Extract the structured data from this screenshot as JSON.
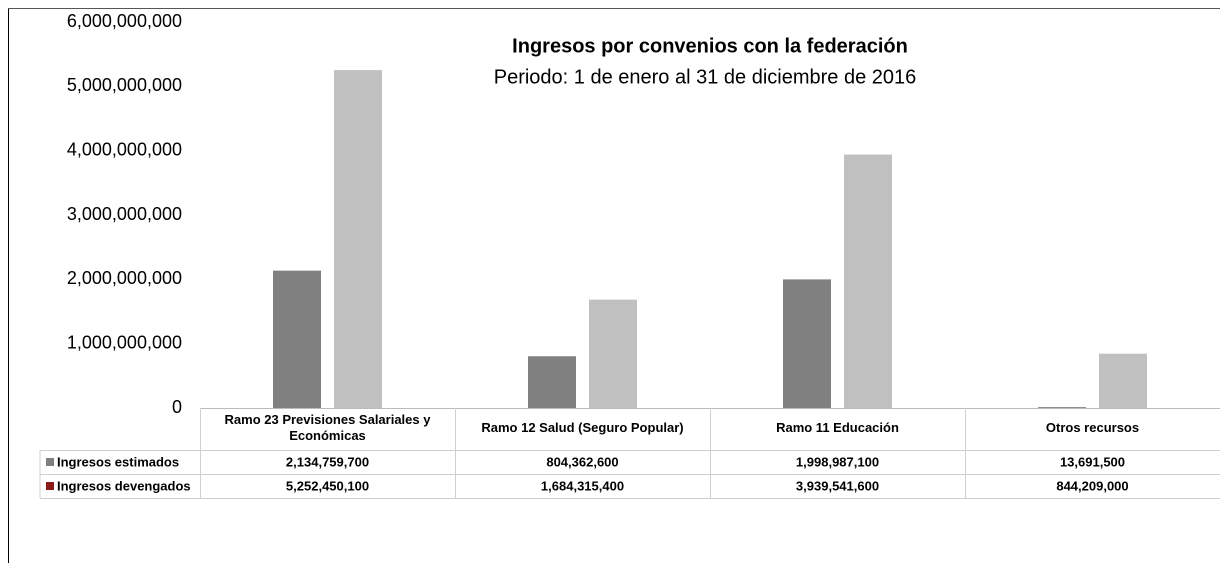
{
  "chart_data": {
    "type": "bar",
    "title": "Ingresos por convenios con la federación",
    "subtitle": "Periodo: 1 de enero al 31 de diciembre de 2016",
    "categories": [
      "Ramo 23 Previsiones Salariales y Económicas",
      "Ramo 12 Salud (Seguro Popular)",
      "Ramo 11 Educación",
      "Otros recursos"
    ],
    "series": [
      {
        "name": "Ingresos estimados",
        "color": "#808080",
        "legend_key_color": "#808080",
        "values": [
          2134759700,
          804362600,
          1998987100,
          13691500
        ],
        "value_labels": [
          "2,134,759,700",
          "804,362,600",
          "1,998,987,100",
          "13,691,500"
        ]
      },
      {
        "name": "Ingresos devengados",
        "color": "#c0c0c0",
        "legend_key_color": "#8b1a1a",
        "values": [
          5252450100,
          1684315400,
          3939541600,
          844209000
        ],
        "value_labels": [
          "5,252,450,100",
          "1,684,315,400",
          "3,939,541,600",
          "844,209,000"
        ]
      }
    ],
    "ylim": [
      0,
      6000000000
    ],
    "yticks": [
      0,
      {
        "value": 1000000000,
        "label": "1,000,000,000"
      },
      {
        "value": 2000000000,
        "label": "2,000,000,000"
      },
      {
        "value": 3000000000,
        "label": "3,000,000,000"
      },
      {
        "value": 4000000000,
        "label": "4,000,000,000"
      },
      {
        "value": 5000000000,
        "label": "5,000,000,000"
      },
      {
        "value": 6000000000,
        "label": "6,000,000,000"
      }
    ],
    "grid": false,
    "data_table": true
  }
}
